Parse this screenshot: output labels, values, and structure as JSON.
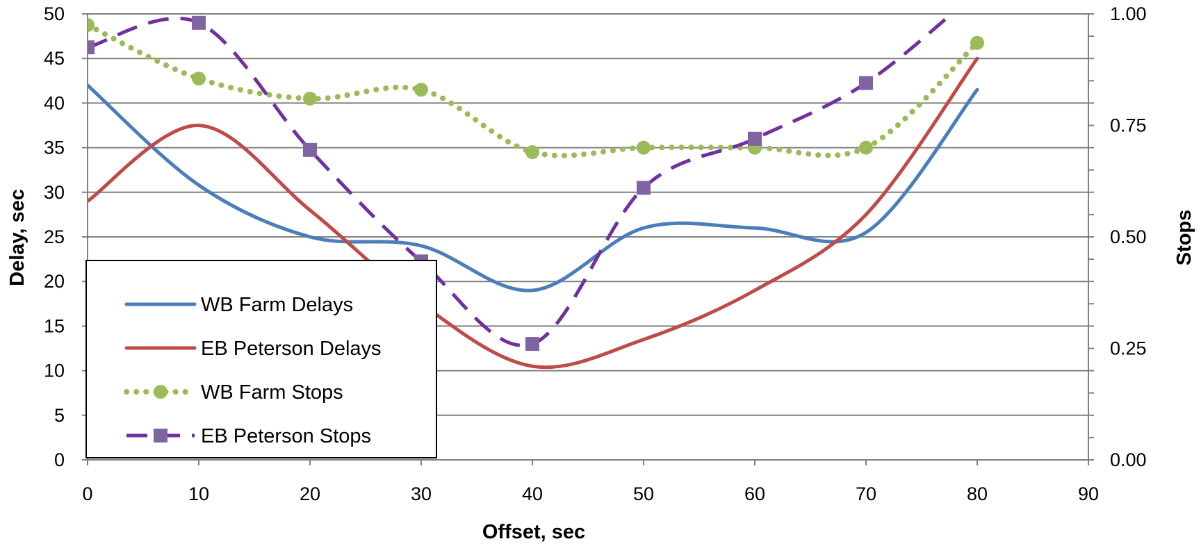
{
  "chart_data": {
    "type": "line",
    "title": "",
    "xlabel": "Offset, sec",
    "ylabel": "Delay, sec",
    "y2label": "Stops",
    "xlim": [
      0,
      90
    ],
    "ylim": [
      0,
      50
    ],
    "y2lim": [
      0,
      1
    ],
    "x_ticks": [
      "0",
      "10",
      "20",
      "30",
      "40",
      "50",
      "60",
      "70",
      "80",
      "90"
    ],
    "y_ticks": [
      "0",
      "5",
      "10",
      "15",
      "20",
      "25",
      "30",
      "35",
      "40",
      "45",
      "50"
    ],
    "y2_ticks": [
      "0.00",
      "0.25",
      "0.50",
      "0.75",
      "1.00"
    ],
    "grid": true,
    "legend_position": "bottom-left",
    "x": [
      0,
      10,
      20,
      30,
      40,
      50,
      60,
      70,
      80
    ],
    "series": [
      {
        "name": "WB Farm Delays",
        "axis": "left",
        "color": "#4a7ebb",
        "style": "solid",
        "marker": "none",
        "values": [
          42,
          30.8,
          25,
          24,
          19,
          26,
          26,
          25.5,
          41.5
        ]
      },
      {
        "name": "EB Peterson Delays",
        "axis": "left",
        "color": "#be4b48",
        "style": "solid",
        "marker": "none",
        "values": [
          29,
          37.5,
          28,
          17.5,
          10.5,
          13.5,
          19,
          27.5,
          45
        ]
      },
      {
        "name": "WB Farm Stops",
        "axis": "right",
        "color": "#9bbb59",
        "style": "dotted",
        "marker": "circle",
        "values": [
          0.975,
          0.855,
          0.81,
          0.83,
          0.69,
          0.7,
          0.7,
          0.7,
          0.935
        ]
      },
      {
        "name": "EB Peterson Stops",
        "axis": "right",
        "color": "#7030a0",
        "style": "dashed",
        "marker": "square",
        "marker_color": "#8064a2",
        "values": [
          0.925,
          0.98,
          0.695,
          0.445,
          0.26,
          0.61,
          0.72,
          0.845,
          1.05
        ]
      }
    ]
  }
}
